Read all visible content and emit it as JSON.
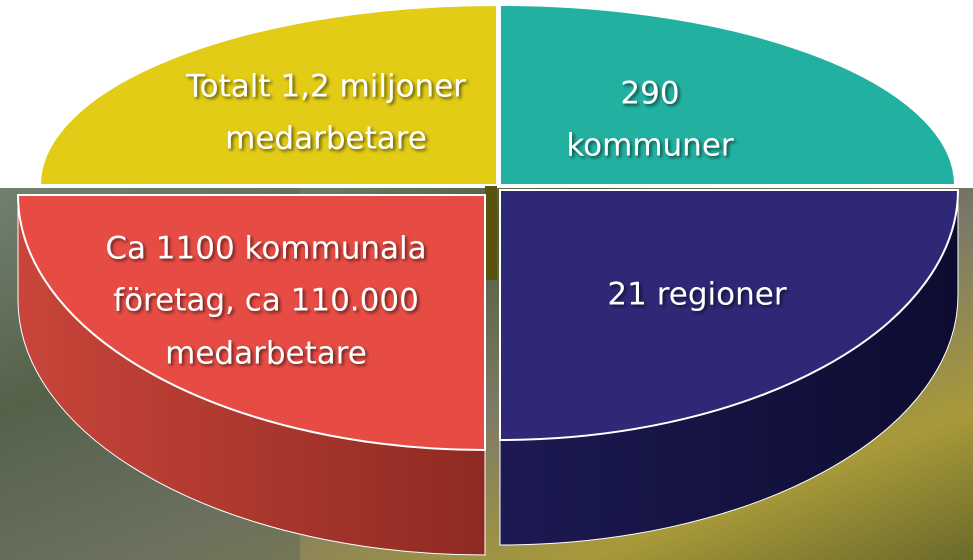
{
  "segments": [
    {
      "lines": [
        "Totalt 1,2 miljoner",
        "medarbetare"
      ]
    },
    {
      "lines": [
        "290",
        "kommuner"
      ]
    },
    {
      "lines": [
        "21 regioner"
      ]
    },
    {
      "lines": [
        "Ca 1100 kommunala",
        "företag, ca 110.000",
        "medarbetare"
      ]
    }
  ]
}
